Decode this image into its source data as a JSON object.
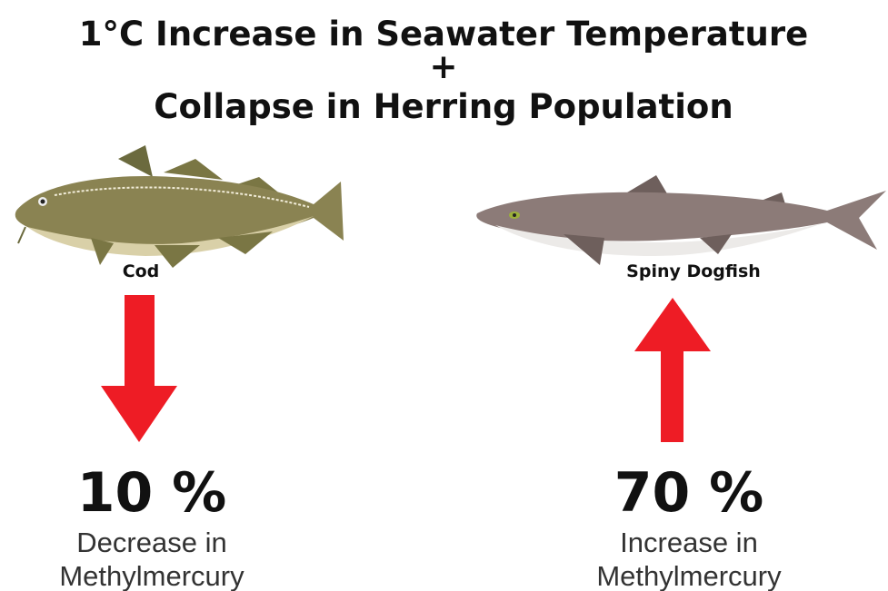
{
  "title": {
    "line1": "1°C Increase in Seawater Temperature",
    "plus": "+",
    "line2": "Collapse in Herring Population"
  },
  "panels": [
    {
      "species": "Cod",
      "change": "10 %",
      "description": [
        "Decrease in",
        "Methylmercury"
      ]
    },
    {
      "species": "Spiny Dogfish",
      "change": "70 %",
      "description": [
        "Increase in",
        "Methylmercury"
      ]
    }
  ]
}
